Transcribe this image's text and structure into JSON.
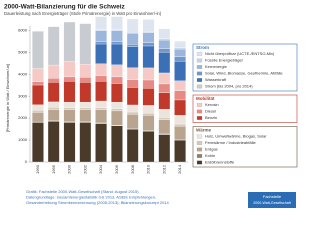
{
  "chart_data": {
    "type": "stacked_bar",
    "title": "2000-Watt-Bilanzierung für die Schweiz",
    "subtitle": "Dauerleistung nach Energieträger (Stufe Primärenergie) in Watt pro Einwohner/-in)",
    "y_label": "[Primärenergie in Watt / Einwohner/-in]",
    "categories": [
      "1990",
      "1995",
      "2000",
      "2002",
      "2004",
      "2006",
      "2008",
      "2010",
      "2012",
      "2014"
    ],
    "ylim": [
      0,
      6200
    ],
    "yticks": [
      0,
      1000,
      2000,
      3000,
      4000,
      5000,
      6000
    ],
    "grid": false,
    "legend_groups": [
      {
        "title": "Wärme",
        "color": "#6b5440"
      },
      {
        "title": "Mobilität",
        "color": "#c0392b"
      },
      {
        "title": "Strom",
        "color": "#3b6fb6"
      }
    ],
    "series": [
      {
        "name": "Erdölbrennstoffe",
        "group": 0,
        "color": "#4a3a2a",
        "values": [
          1800,
          1850,
          1800,
          1800,
          1750,
          1650,
          1500,
          1400,
          1250,
          1000
        ]
      },
      {
        "name": "Kohle",
        "group": 0,
        "color": "#8f7c68",
        "values": [
          60,
          40,
          30,
          30,
          30,
          30,
          30,
          30,
          30,
          30
        ]
      },
      {
        "name": "Erdgas",
        "group": 0,
        "color": "#b8a48f",
        "values": [
          400,
          500,
          550,
          550,
          600,
          650,
          650,
          700,
          650,
          600
        ]
      },
      {
        "name": "Fernwärme / Industrieabfälle",
        "group": 0,
        "color": "#d6cabd",
        "values": [
          100,
          100,
          100,
          100,
          100,
          100,
          100,
          100,
          100,
          100
        ]
      },
      {
        "name": "Holz, Umweltwärme, Biogas, Solar",
        "group": 0,
        "color": "#ebe5dd",
        "values": [
          250,
          250,
          250,
          250,
          300,
          300,
          320,
          350,
          380,
          400
        ]
      },
      {
        "name": "Benzin",
        "group": 1,
        "color": "#c0392b",
        "values": [
          900,
          900,
          950,
          900,
          900,
          850,
          800,
          780,
          750,
          700
        ]
      },
      {
        "name": "Diesel",
        "group": 1,
        "color": "#e58a84",
        "values": [
          150,
          180,
          200,
          230,
          250,
          300,
          350,
          380,
          400,
          420
        ]
      },
      {
        "name": "Kerosin",
        "group": 1,
        "color": "#f5c9c6",
        "values": [
          600,
          600,
          700,
          600,
          550,
          550,
          550,
          550,
          500,
          450
        ]
      },
      {
        "name": "Strom (bis 2004, pro 2014)",
        "group": 2,
        "color": "#c8cbd0",
        "values": [
          1700,
          1750,
          1800,
          1850,
          null,
          null,
          null,
          null,
          null,
          null
        ]
      },
      {
        "name": "Wasserkraft",
        "group": 2,
        "color": "#3b6fb6",
        "values": [
          null,
          null,
          null,
          null,
          900,
          950,
          950,
          1000,
          950,
          900
        ]
      },
      {
        "name": "Solar, Wind, Biomasse, Geothermie, Abfälle",
        "group": 2,
        "color": "#6f97cc",
        "values": [
          null,
          null,
          null,
          null,
          100,
          100,
          120,
          150,
          150,
          200
        ]
      },
      {
        "name": "Kernenergie",
        "group": 2,
        "color": "#9cb6dc",
        "values": [
          null,
          null,
          null,
          null,
          500,
          500,
          500,
          450,
          400,
          350
        ]
      },
      {
        "name": "Fossile Energieträger",
        "group": 2,
        "color": "#c4d3ea",
        "values": [
          null,
          null,
          null,
          null,
          50,
          50,
          50,
          60,
          60,
          60
        ]
      },
      {
        "name": "Nicht überprüfbar (UCTE-/ENTSO-Mix)",
        "group": 2,
        "color": "#dfe5ef",
        "values": [
          null,
          null,
          null,
          null,
          600,
          600,
          600,
          550,
          450,
          300
        ]
      }
    ],
    "footer": [
      "Grafik: Fachstelle 2000-Watt-Gesellschaft (Stand: August 2015)",
      "Datengrundlage: Gesamtenergiestatistik GS 2013, ASEIE Empfehlungen,",
      "Gesamterhebung Stromkennzeichnung (2005-2013); Bilanzierungskonzept 2014"
    ],
    "logo": [
      "Fachstelle",
      "2000-Watt-Gesellschaft"
    ]
  }
}
